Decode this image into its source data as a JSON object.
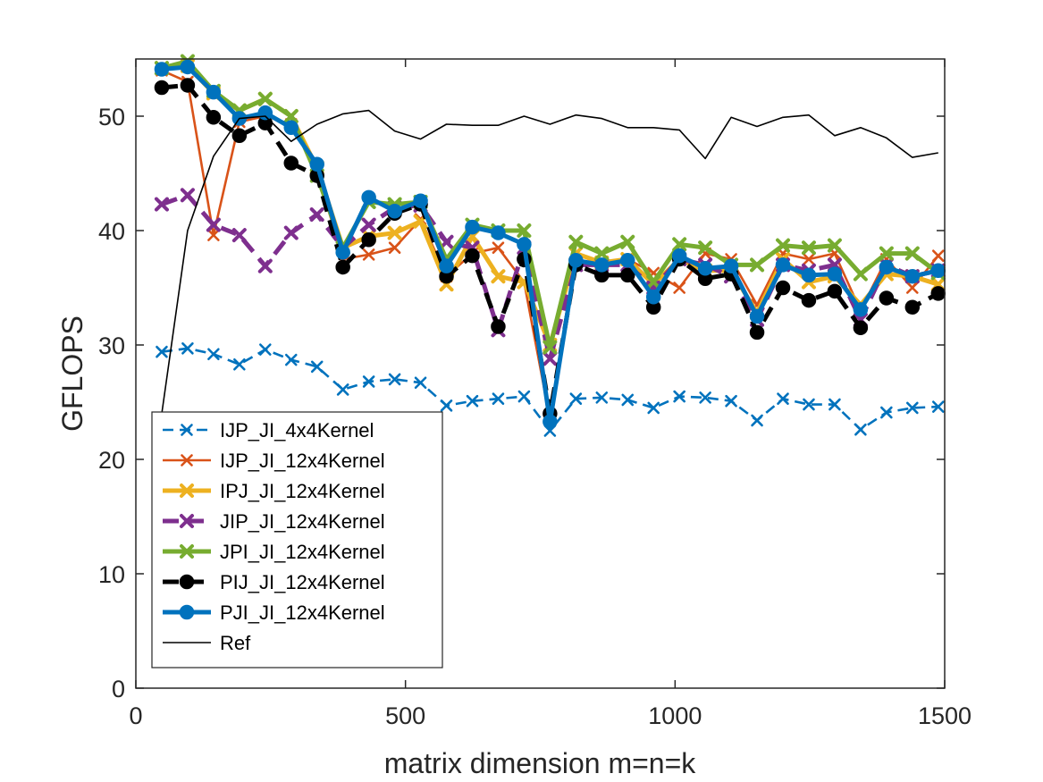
{
  "chart_data": {
    "type": "line",
    "xlabel": "matrix dimension m=n=k",
    "ylabel": "GFLOPS",
    "xlim": [
      0,
      1500
    ],
    "ylim": [
      0,
      55
    ],
    "xticks": [
      0,
      500,
      1000,
      1500
    ],
    "yticks": [
      0,
      10,
      20,
      30,
      40,
      50
    ],
    "grid": false,
    "legend_position": "bottom-left",
    "x": [
      48,
      96,
      144,
      192,
      240,
      288,
      336,
      384,
      432,
      480,
      528,
      576,
      624,
      672,
      720,
      768,
      816,
      864,
      912,
      960,
      1008,
      1056,
      1104,
      1152,
      1200,
      1248,
      1296,
      1344,
      1392,
      1440,
      1488
    ],
    "series": [
      {
        "name": "IJP_JI_4x4Kernel",
        "color": "#0072BD",
        "dash": "dashed",
        "marker": "x",
        "width": "thin",
        "values": [
          29.4,
          29.7,
          29.2,
          28.3,
          29.6,
          28.7,
          28.1,
          26.1,
          26.8,
          27.0,
          26.7,
          24.7,
          25.1,
          25.3,
          25.5,
          22.5,
          25.3,
          25.4,
          25.2,
          24.5,
          25.5,
          25.4,
          25.1,
          23.4,
          25.3,
          24.8,
          24.8,
          22.6,
          24.1,
          24.5,
          24.6
        ]
      },
      {
        "name": "IJP_JI_12x4Kernel",
        "color": "#D95319",
        "dash": "solid",
        "marker": "x",
        "width": "thin",
        "values": [
          54.0,
          53.0,
          39.6,
          49.5,
          50.0,
          49.3,
          45.2,
          37.5,
          37.9,
          38.5,
          41.0,
          36.0,
          38.0,
          38.5,
          35.5,
          23.5,
          38.0,
          37.0,
          37.5,
          36.3,
          35.0,
          38.0,
          37.5,
          33.5,
          38.0,
          37.5,
          38.0,
          33.0,
          37.5,
          35.0,
          37.8
        ]
      },
      {
        "name": "IPJ_JI_12x4Kernel",
        "color": "#EDB120",
        "dash": "solid",
        "marker": "x",
        "width": "thick",
        "values": [
          54.2,
          54.4,
          52.0,
          50.5,
          51.5,
          50.0,
          45.5,
          38.5,
          39.5,
          39.8,
          40.8,
          35.3,
          39.5,
          36.0,
          35.5,
          30.0,
          38.0,
          37.2,
          37.5,
          35.3,
          37.5,
          36.5,
          36.5,
          32.8,
          37.5,
          35.5,
          36.0,
          33.5,
          36.2,
          36.0,
          35.3
        ]
      },
      {
        "name": "JIP_JI_12x4Kernel",
        "color": "#7E2F8E",
        "dash": "dashed",
        "marker": "x",
        "width": "thick",
        "values": [
          42.3,
          43.1,
          40.5,
          39.6,
          36.9,
          39.8,
          41.4,
          38.5,
          40.5,
          42.0,
          42.2,
          39.0,
          38.5,
          31.3,
          38.5,
          28.8,
          37.0,
          37.0,
          37.0,
          35.0,
          37.5,
          37.0,
          36.0,
          32.2,
          37.0,
          36.5,
          37.0,
          32.2,
          37.0,
          36.0,
          36.5
        ]
      },
      {
        "name": "JPI_JI_12x4Kernel",
        "color": "#77AC30",
        "dash": "solid",
        "marker": "x",
        "width": "thick",
        "values": [
          54.2,
          54.8,
          52.2,
          50.5,
          51.5,
          50.0,
          44.8,
          38.5,
          42.5,
          42.3,
          42.5,
          37.5,
          40.5,
          40.0,
          40.0,
          29.8,
          39.0,
          38.0,
          39.0,
          35.5,
          38.8,
          38.5,
          37.0,
          37.0,
          38.7,
          38.5,
          38.7,
          36.2,
          38.0,
          38.0,
          36.3
        ]
      },
      {
        "name": "PIJ_JI_12x4Kernel",
        "color": "#000000",
        "dash": "dashed",
        "marker": "dot",
        "width": "thick",
        "values": [
          52.5,
          52.7,
          49.9,
          48.3,
          49.4,
          45.9,
          44.8,
          36.8,
          39.2,
          41.5,
          42.3,
          36.0,
          37.8,
          31.6,
          37.5,
          24.0,
          37.0,
          36.1,
          36.1,
          33.3,
          37.5,
          35.8,
          36.2,
          31.1,
          35.0,
          33.9,
          34.7,
          31.5,
          34.1,
          33.3,
          34.5
        ]
      },
      {
        "name": "PJI_JI_12x4Kernel",
        "color": "#0072BD",
        "dash": "solid",
        "marker": "dot",
        "width": "thick",
        "values": [
          54.1,
          54.3,
          52.1,
          49.8,
          50.3,
          49.0,
          45.8,
          38.1,
          42.9,
          41.7,
          42.6,
          36.9,
          40.3,
          39.8,
          38.8,
          23.3,
          37.4,
          37.0,
          37.4,
          34.2,
          37.8,
          36.7,
          36.9,
          32.5,
          37.0,
          36.1,
          36.2,
          33.1,
          36.8,
          36.0,
          36.5
        ]
      },
      {
        "name": "Ref",
        "color": "#000000",
        "dash": "solid",
        "marker": "none",
        "width": "hairline",
        "x": [
          48,
          96,
          144,
          192,
          240,
          288,
          336,
          384,
          432,
          480,
          528,
          576,
          624,
          672,
          720,
          768,
          816,
          864,
          912,
          960,
          1008,
          1056,
          1104,
          1152,
          1200,
          1248,
          1296,
          1344,
          1392,
          1440,
          1488
        ],
        "values": [
          24.0,
          40.0,
          46.5,
          49.8,
          50.0,
          47.8,
          49.3,
          50.2,
          50.5,
          48.7,
          48.0,
          49.3,
          49.2,
          49.2,
          50.0,
          49.3,
          50.1,
          49.8,
          49.0,
          49.0,
          48.8,
          46.3,
          49.9,
          49.1,
          49.9,
          50.1,
          48.3,
          49.0,
          48.1,
          46.4,
          46.8
        ]
      }
    ]
  }
}
